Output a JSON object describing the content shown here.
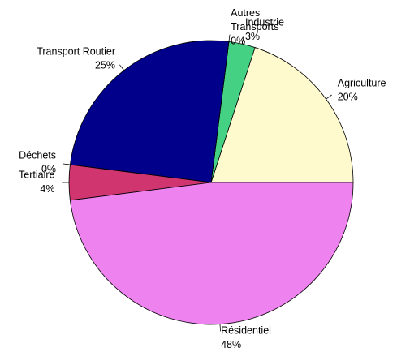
{
  "chart_data": {
    "type": "pie",
    "categories": [
      "Agriculture",
      "Industrie",
      "Autres\nTransports",
      "Transport Routier",
      "Déchets",
      "Tertiaire",
      "Résidentiel"
    ],
    "values": [
      20,
      3,
      0,
      25,
      0,
      4,
      48
    ],
    "value_labels": [
      "20%",
      "3%",
      "0%",
      "25%",
      "0%",
      "4%",
      "48%"
    ],
    "colors": [
      "#fffacd",
      "#45d184",
      "#7fffd4",
      "#00008b",
      "#8b4513",
      "#d1356f",
      "#ee82ee"
    ]
  }
}
